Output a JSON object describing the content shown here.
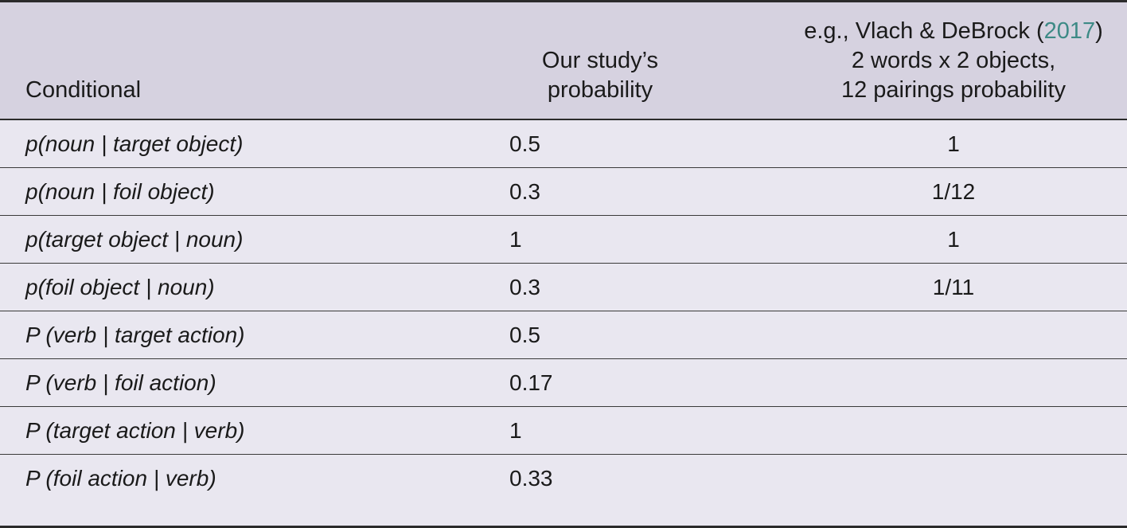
{
  "table": {
    "headers": {
      "conditional": "Conditional",
      "ours_line1": "Our study’s",
      "ours_line2": "probability",
      "ref_line1_prefix": "e.g., Vlach & DeBrock (",
      "ref_line1_year": "2017",
      "ref_line1_suffix": ")",
      "ref_line2": "2 words x 2 objects,",
      "ref_line3": "12 pairings probability"
    },
    "rows": [
      {
        "conditional": "p(noun | target object)",
        "ours": "0.5",
        "ref": "1"
      },
      {
        "conditional": "p(noun | foil object)",
        "ours": "0.3",
        "ref": "1/12"
      },
      {
        "conditional": "p(target object | noun)",
        "ours": "1",
        "ref": "1"
      },
      {
        "conditional": "p(foil object | noun)",
        "ours": "0.3",
        "ref": "1/11"
      },
      {
        "conditional": "P (verb | target action)",
        "ours": "0.5",
        "ref": ""
      },
      {
        "conditional": "P (verb | foil action)",
        "ours": "0.17",
        "ref": ""
      },
      {
        "conditional": "P (target action | verb)",
        "ours": "1",
        "ref": ""
      },
      {
        "conditional": "P (foil action | verb)",
        "ours": "0.33",
        "ref": ""
      }
    ]
  },
  "colors": {
    "header_bg": "#d6d2e0",
    "body_bg": "#e9e7f0",
    "rule": "#2b2b2b",
    "link": "#3d8a86"
  }
}
